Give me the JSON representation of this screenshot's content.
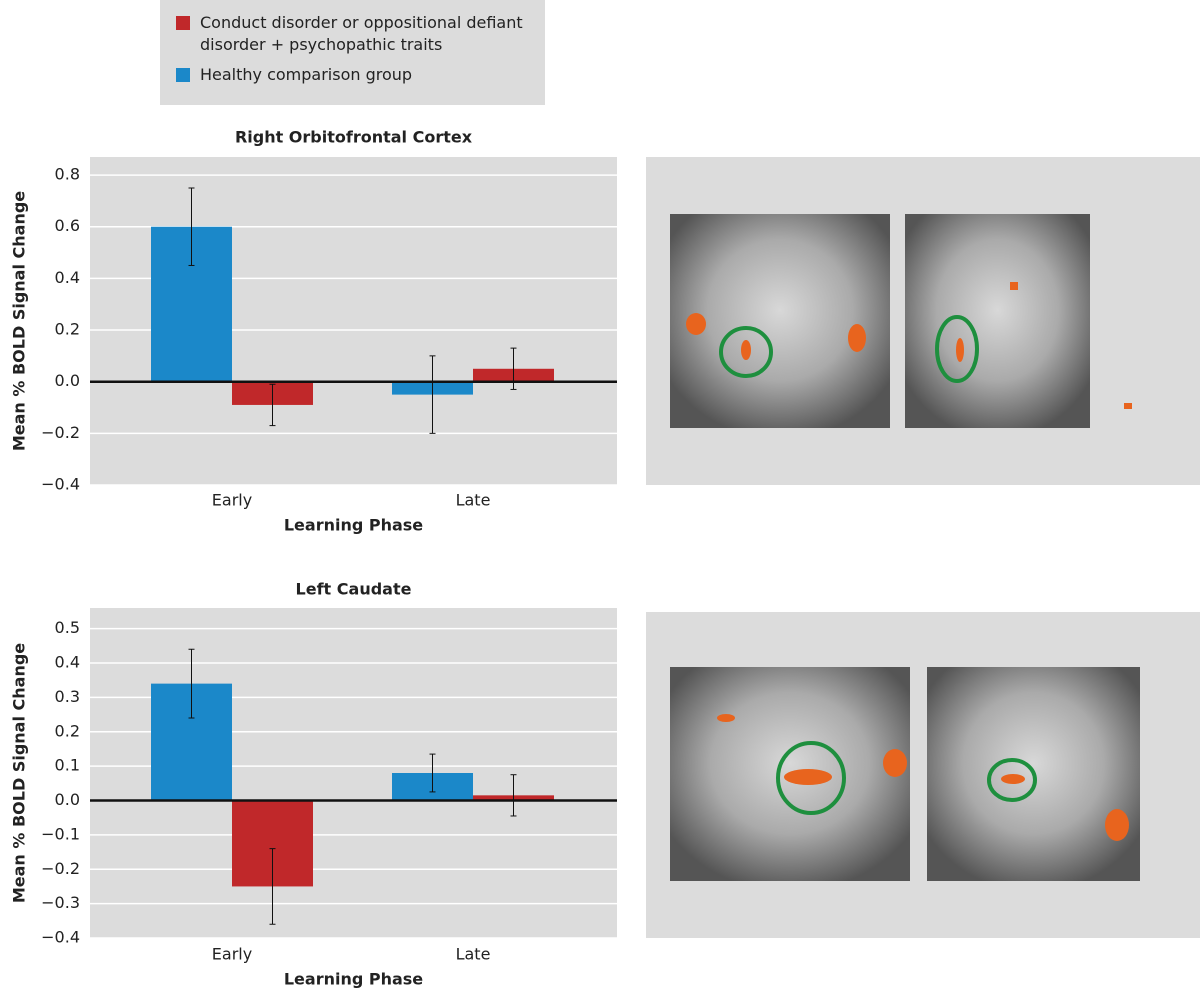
{
  "chart_data": [
    {
      "type": "bar",
      "title": "Right Orbitofrontal Cortex",
      "categories": [
        "Early",
        "Late"
      ],
      "series": [
        {
          "name": "Conduct disorder or oppositional defiant disorder + psychopathic traits",
          "color": "#c0282a",
          "values": [
            -0.09,
            0.05
          ],
          "errors": [
            0.08,
            0.08
          ]
        },
        {
          "name": "Healthy comparison group",
          "color": "#1b88c9",
          "values": [
            0.6,
            -0.05
          ],
          "errors": [
            0.15,
            0.15
          ]
        }
      ],
      "xlabel": "Learning Phase",
      "ylabel": "Mean % BOLD Signal Change",
      "ylim": [
        -0.4,
        0.87
      ],
      "yticks": [
        {
          "value": -0.4,
          "label": "−0.4"
        },
        {
          "value": -0.2,
          "label": "−0.2"
        },
        {
          "value": 0,
          "label": "0.0"
        },
        0.2,
        0.4,
        0.6,
        0.8
      ],
      "grid": true
    },
    {
      "type": "bar",
      "title": "Left Caudate",
      "categories": [
        "Early",
        "Late"
      ],
      "series": [
        {
          "color": "#c0282a",
          "values": [
            -0.25,
            0.015
          ],
          "errors": [
            0.11,
            0.06
          ]
        },
        {
          "color": "#1b88c9",
          "values": [
            0.34,
            0.08
          ],
          "errors": [
            0.1,
            0.055
          ]
        }
      ],
      "xlabel": "Learning Phase",
      "ylabel": "Mean % BOLD Signal Change",
      "ylim": [
        -0.4,
        0.56
      ],
      "yticks": [
        {
          "value": -0.4,
          "label": "−0.4"
        },
        {
          "value": -0.3,
          "label": "−0.3"
        },
        {
          "value": -0.2,
          "label": "−0.2"
        },
        {
          "value": -0.1,
          "label": "−0.1"
        },
        {
          "value": 0,
          "label": "0.0"
        },
        0.1,
        0.2,
        0.3,
        0.4,
        0.5
      ],
      "grid": true
    }
  ]
}
